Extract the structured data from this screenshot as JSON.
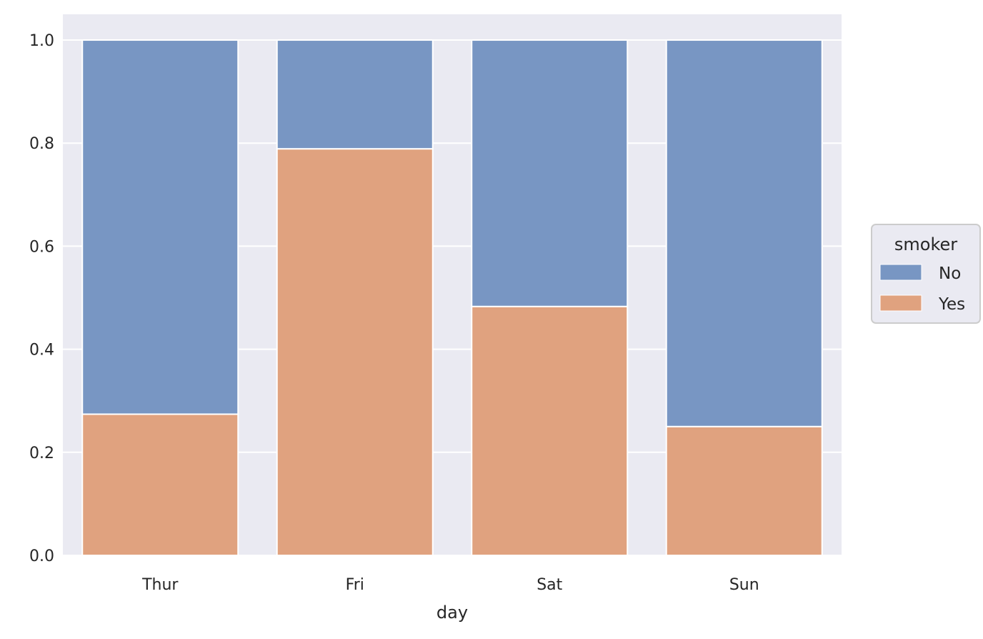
{
  "chart_data": {
    "type": "bar",
    "stacked": true,
    "categories": [
      "Thur",
      "Fri",
      "Sat",
      "Sun"
    ],
    "series": [
      {
        "name": "No",
        "color": "#7896c3",
        "values": [
          0.726,
          0.211,
          0.517,
          0.75
        ]
      },
      {
        "name": "Yes",
        "color": "#e0a27f",
        "values": [
          0.274,
          0.789,
          0.483,
          0.25
        ]
      }
    ],
    "xlabel": "day",
    "ylabel": "",
    "ylim": [
      0,
      1.05
    ],
    "yticks": [
      "0.0",
      "0.2",
      "0.4",
      "0.6",
      "0.8",
      "1.0"
    ],
    "ytick_values": [
      0,
      0.2,
      0.4,
      0.6,
      0.8,
      1.0
    ],
    "grid": true,
    "legend": {
      "title": "smoker",
      "placement": "right",
      "entries": [
        "No",
        "Yes"
      ]
    },
    "colors": {
      "plot_background": "#eaeaf2",
      "grid": "#ffffff",
      "bar_edge": "#ffffff"
    }
  }
}
